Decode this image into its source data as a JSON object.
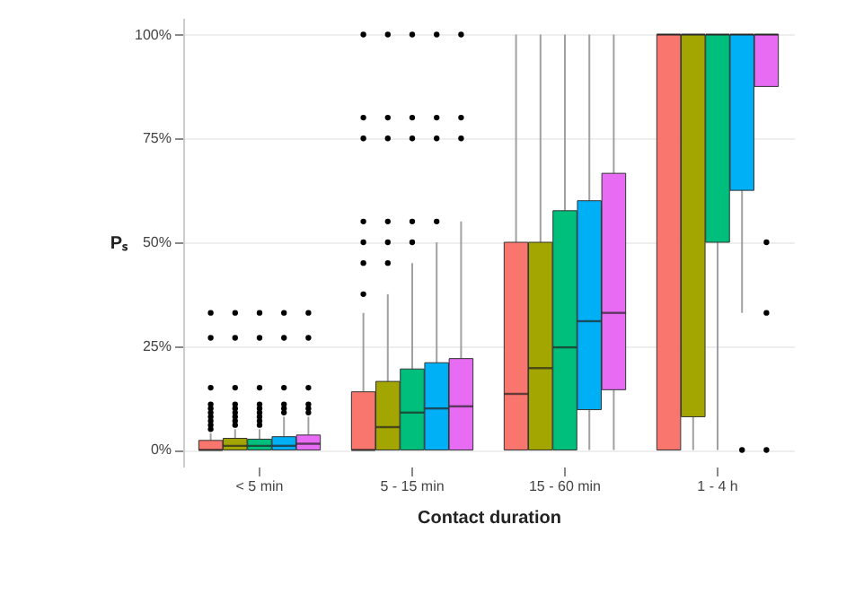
{
  "chart_data": {
    "type": "box",
    "xlabel": "Contact duration",
    "ylabel": "Pₛ",
    "categories": [
      "< 5 min",
      "5 - 15 min",
      "15 - 60 min",
      "1 - 4 h"
    ],
    "ylim": [
      -4,
      104
    ],
    "yticks": [
      {
        "value": 0,
        "label": "0%"
      },
      {
        "value": 25,
        "label": "25%"
      },
      {
        "value": 50,
        "label": "50%"
      },
      {
        "value": 75,
        "label": "75%"
      },
      {
        "value": 100,
        "label": "100%"
      }
    ],
    "grid": "y",
    "series": [
      {
        "color": "#f8766d",
        "boxes": [
          {
            "low": 0,
            "q1": 0,
            "median": 0,
            "q3": 2.3,
            "high": 4,
            "outliers": [
              5,
              6,
              7,
              8,
              9,
              10,
              11,
              15,
              27,
              33
            ]
          },
          {
            "low": 0,
            "q1": 0,
            "median": 0,
            "q3": 14,
            "high": 33,
            "outliers": [
              37.5,
              45,
              50,
              55,
              75,
              80,
              100
            ]
          },
          {
            "low": 0,
            "q1": 0,
            "median": 13.5,
            "q3": 50,
            "high": 100
          },
          {
            "low": 0,
            "q1": 0,
            "median": 100,
            "q3": 100,
            "high": 100
          }
        ]
      },
      {
        "color": "#a3a500",
        "boxes": [
          {
            "low": 0,
            "q1": 0,
            "median": 1,
            "q3": 2.8,
            "high": 5,
            "outliers": [
              6,
              7,
              8,
              9,
              10,
              11,
              15,
              27,
              33
            ]
          },
          {
            "low": 0,
            "q1": 0,
            "median": 5.5,
            "q3": 16.5,
            "high": 37.5,
            "outliers": [
              45,
              50,
              55,
              75,
              80,
              100
            ]
          },
          {
            "low": 0,
            "q1": 0,
            "median": 19.7,
            "q3": 50,
            "high": 100
          },
          {
            "low": 0,
            "q1": 8,
            "median": 100,
            "q3": 100,
            "high": 100
          }
        ]
      },
      {
        "color": "#00bf7d",
        "boxes": [
          {
            "low": 0,
            "q1": 0,
            "median": 1,
            "q3": 2.6,
            "high": 5,
            "outliers": [
              6,
              7,
              8,
              9,
              10,
              11,
              15,
              27,
              33
            ]
          },
          {
            "low": 0,
            "q1": 0,
            "median": 9,
            "q3": 19.5,
            "high": 45,
            "outliers": [
              50,
              55,
              75,
              80,
              100
            ]
          },
          {
            "low": 0,
            "q1": 0,
            "median": 24.7,
            "q3": 57.6,
            "high": 100
          },
          {
            "low": 0,
            "q1": 50,
            "median": 100,
            "q3": 100,
            "high": 100
          }
        ]
      },
      {
        "color": "#00b0f6",
        "boxes": [
          {
            "low": 0,
            "q1": 0,
            "median": 1,
            "q3": 3.2,
            "high": 8,
            "outliers": [
              9,
              10,
              11,
              15,
              27,
              33
            ]
          },
          {
            "low": 0,
            "q1": 0,
            "median": 10,
            "q3": 21,
            "high": 50,
            "outliers": [
              55,
              75,
              80,
              100
            ]
          },
          {
            "low": 0,
            "q1": 9.7,
            "median": 31,
            "q3": 60,
            "high": 100
          },
          {
            "low": 33,
            "q1": 62.5,
            "median": 100,
            "q3": 100,
            "high": 100,
            "outliers": [
              0
            ]
          }
        ]
      },
      {
        "color": "#e76bf3",
        "boxes": [
          {
            "low": 0,
            "q1": 0,
            "median": 1.5,
            "q3": 3.6,
            "high": 8,
            "outliers": [
              9,
              10,
              11,
              15,
              27,
              33
            ]
          },
          {
            "low": 0,
            "q1": 0,
            "median": 10.5,
            "q3": 22,
            "high": 55,
            "outliers": [
              75,
              80,
              100
            ]
          },
          {
            "low": 0,
            "q1": 14.5,
            "median": 33,
            "q3": 66.6,
            "high": 100
          },
          {
            "low": 87.5,
            "q1": 87.5,
            "median": 100,
            "q3": 100,
            "high": 100,
            "outliers": [
              0,
              33,
              50
            ]
          }
        ]
      }
    ]
  }
}
